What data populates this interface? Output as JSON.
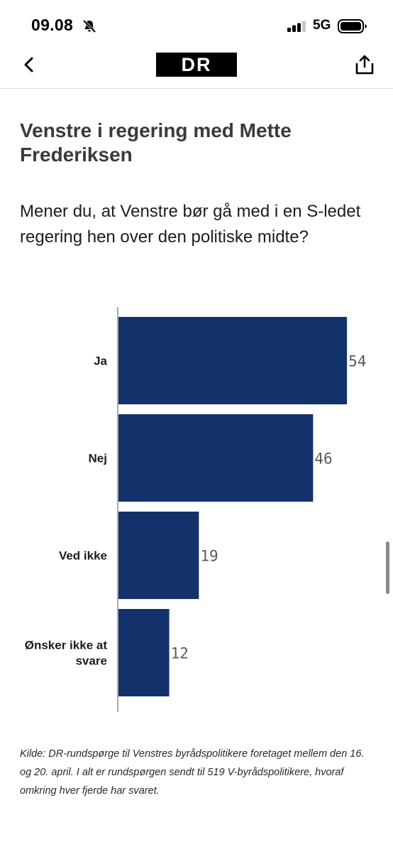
{
  "status_bar": {
    "time": "09.08",
    "network": "5G"
  },
  "header": {
    "logo": "DR",
    "icons": {
      "back": "chevron-left-icon",
      "share": "share-icon"
    }
  },
  "chart_data": {
    "type": "bar",
    "orientation": "horizontal",
    "title": "Venstre i regering med Mette Frederiksen",
    "subtitle": "Mener du, at Venstre bør gå med i en S-ledet regering hen over den politiske midte?",
    "categories": [
      [
        "Ja"
      ],
      [
        "Nej"
      ],
      [
        "Ved ikke"
      ],
      [
        "Ønsker ikke at",
        "svare"
      ]
    ],
    "values": [
      54,
      46,
      19,
      12
    ],
    "xlim": [
      0,
      57
    ],
    "bar_color": "#13316b",
    "grid": false,
    "legend": "none",
    "source": "Kilde: DR-rundspørge til Venstres byrådspolitikere foretaget mellem den 16. og 20. april. I alt er rundspørgen sendt til 519 V-byrådspolitikere, hvoraf omkring hver fjerde har svaret."
  }
}
